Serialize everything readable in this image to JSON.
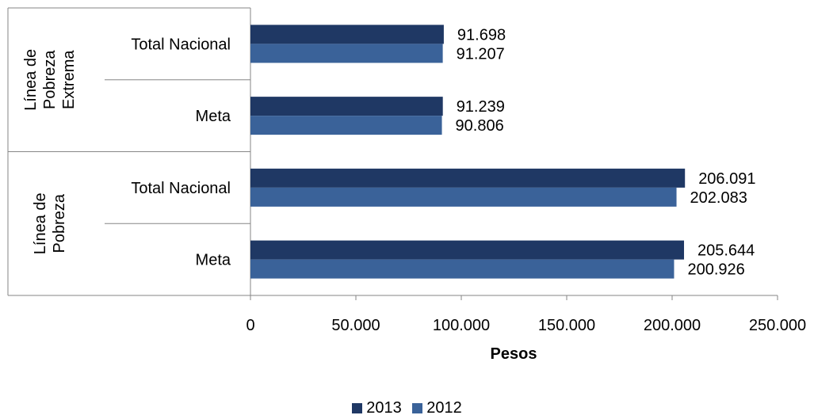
{
  "chart_data": {
    "type": "bar",
    "orientation": "horizontal",
    "groups": [
      {
        "label_lines": [
          "Línea de",
          "Pobreza",
          "Extrema"
        ],
        "categories": [
          "Total Nacional",
          "Meta"
        ]
      },
      {
        "label_lines": [
          "Línea de",
          "Pobreza"
        ],
        "categories": [
          "Total Nacional",
          "Meta"
        ]
      }
    ],
    "categories": [
      "Total Nacional",
      "Meta",
      "Total Nacional",
      "Meta"
    ],
    "series": [
      {
        "name": "2013",
        "color": "#1f3864",
        "values": [
          91698,
          91239,
          206091,
          205644
        ],
        "labels": [
          "91.698",
          "91.239",
          "206.091",
          "205.644"
        ]
      },
      {
        "name": "2012",
        "color": "#3a6299",
        "values": [
          91207,
          90806,
          202083,
          200926
        ],
        "labels": [
          "91.207",
          "90.806",
          "202.083",
          "200.926"
        ]
      }
    ],
    "xlabel": "Pesos",
    "ylabel": "",
    "xlim": [
      0,
      250000
    ],
    "xticks": [
      0,
      50000,
      100000,
      150000,
      200000,
      250000
    ],
    "xtick_labels": [
      "0",
      "50.000",
      "100.000",
      "150.000",
      "200.000",
      "250.000"
    ],
    "grid": false,
    "legend_position": "bottom"
  }
}
